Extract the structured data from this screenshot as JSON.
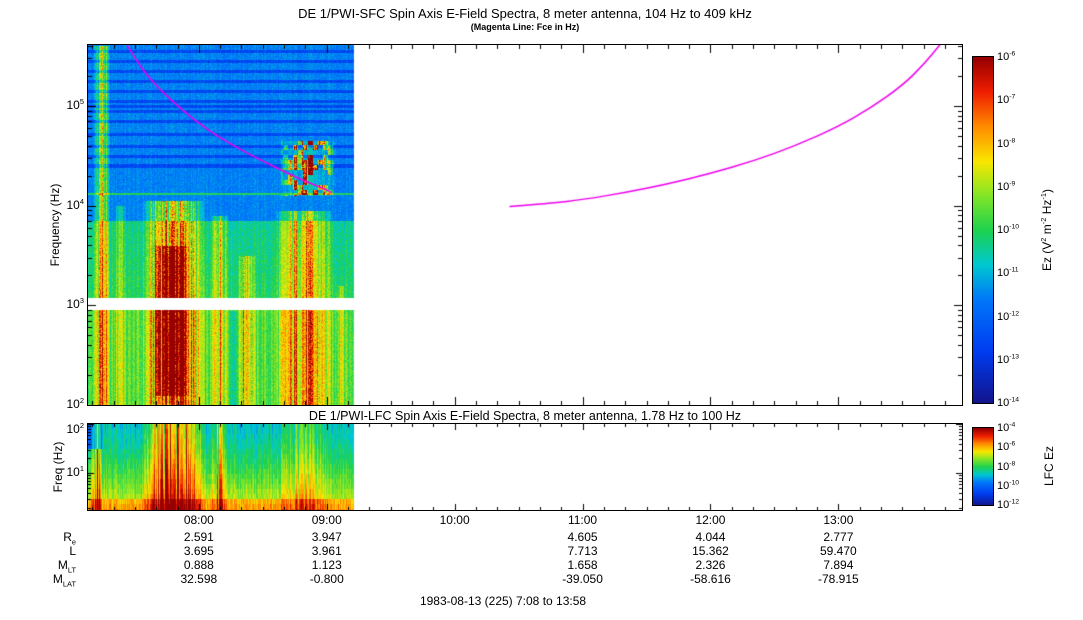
{
  "figure": {
    "footer": "1983-08-13 (225) 7:08 to 13:58",
    "time_axis": {
      "start": "07:08",
      "end": "13:58",
      "tick_labels": [
        "08:00",
        "09:00",
        "10:00",
        "11:00",
        "12:00",
        "13:00"
      ]
    }
  },
  "palette": {
    "stops": [
      [
        0.0,
        20,
        20,
        140
      ],
      [
        0.15,
        0,
        60,
        240
      ],
      [
        0.3,
        0,
        120,
        250
      ],
      [
        0.4,
        0,
        200,
        210
      ],
      [
        0.5,
        30,
        210,
        80
      ],
      [
        0.6,
        130,
        230,
        40
      ],
      [
        0.7,
        250,
        230,
        0
      ],
      [
        0.8,
        255,
        140,
        0
      ],
      [
        0.9,
        240,
        30,
        0
      ],
      [
        1.0,
        150,
        0,
        0
      ]
    ]
  },
  "chart_data": [
    {
      "type": "heatmap",
      "id": "sfc",
      "title": "DE 1/PWI-SFC  Spin Axis E-Field Spectra, 8 meter antenna, 104 Hz to 409 kHz",
      "subtitle": "(Magenta Line: Fce in Hz)",
      "ylabel": "Frequency (Hz)",
      "yscale": "log",
      "ylim_hz": [
        100,
        409000
      ],
      "ytick_labels": [
        "10^{5}",
        "10^{4}",
        "10^{3}",
        "10^{2}"
      ],
      "x_time_range": [
        "07:08",
        "13:58"
      ],
      "data_time_range": [
        "07:08",
        "09:13"
      ],
      "colorbar": {
        "label": "Ez (V^{2} m^{-2} Hz^{-1})",
        "scale": "log",
        "tick_labels": [
          "10^{-6}",
          "10^{-7}",
          "10^{-8}",
          "10^{-9}",
          "10^{-10}",
          "10^{-11}",
          "10^{-12}",
          "10^{-13}",
          "10^{-14}"
        ]
      },
      "fce_line": {
        "label": "Fce in Hz",
        "color": "#ee00ee",
        "segments": [
          {
            "time": [
              "07:26",
              "07:31",
              "07:36",
              "07:42",
              "07:48",
              "07:54",
              "08:00",
              "08:10",
              "08:20",
              "08:30",
              "08:40",
              "08:50",
              "09:00",
              "09:02"
            ],
            "hz": [
              420000,
              280000,
              200000,
              145000,
              110000,
              85000,
              67000,
              48000,
              36000,
              28000,
              22000,
              17500,
              14500,
              13500
            ]
          },
          {
            "time": [
              "10:26",
              "10:45",
              "11:00",
              "11:20",
              "11:40",
              "12:00",
              "12:20",
              "12:40",
              "13:00",
              "13:15",
              "13:30",
              "13:40",
              "13:48"
            ],
            "hz": [
              9800,
              10500,
              11500,
              13500,
              16500,
              21000,
              28000,
              40000,
              62000,
              95000,
              160000,
              260000,
              420000
            ]
          }
        ]
      },
      "spectral_features": {
        "gap_band_hz": [
          900,
          1200
        ],
        "dark_bands_loghz": [
          5.55,
          5.45,
          5.35,
          5.25,
          5.15,
          5.05,
          5.0,
          4.95,
          4.85,
          4.72,
          4.6,
          4.5,
          4.4
        ],
        "bright_line_loghz": 4.12,
        "events": [
          {
            "t0": 0.02,
            "t1": 0.08,
            "lf0": 2.0,
            "lf1": 5.61,
            "amp": 0.3
          },
          {
            "t0": 0.1,
            "t1": 0.14,
            "lf0": 2.0,
            "lf1": 4.0,
            "amp": 0.15
          },
          {
            "t0": 0.2,
            "t1": 0.44,
            "lf0": 2.0,
            "lf1": 4.05,
            "amp": 0.35
          },
          {
            "t0": 0.24,
            "t1": 0.38,
            "lf0": 2.1,
            "lf1": 3.6,
            "amp": 0.38
          },
          {
            "t0": 0.46,
            "t1": 0.53,
            "lf0": 2.0,
            "lf1": 3.9,
            "amp": 0.22
          },
          {
            "t0": 0.53,
            "t1": 0.56,
            "lf0": 2.0,
            "lf1": 2.95,
            "amp": -0.12
          },
          {
            "t0": 0.56,
            "t1": 0.63,
            "lf0": 2.0,
            "lf1": 3.5,
            "amp": 0.2
          },
          {
            "t0": 0.72,
            "t1": 0.93,
            "lf0": 4.1,
            "lf1": 4.65,
            "amp": 0.5,
            "patchy": true
          },
          {
            "t0": 0.7,
            "t1": 0.92,
            "lf0": 2.0,
            "lf1": 3.95,
            "amp": 0.26
          },
          {
            "t0": 0.93,
            "t1": 0.97,
            "lf0": 2.0,
            "lf1": 3.2,
            "amp": 0.15
          }
        ]
      }
    },
    {
      "type": "heatmap",
      "id": "lfc",
      "title": "DE 1/PWI-LFC  Spin Axis E-Field Spectra, 8 meter antenna, 1.78 Hz to 100 Hz",
      "ylabel": "Freq (Hz)",
      "yscale": "log",
      "ylim_hz": [
        1.78,
        100
      ],
      "ytick_labels": [
        "10^{2}",
        "10^{1}"
      ],
      "x_time_range": [
        "07:08",
        "13:58"
      ],
      "data_time_range": [
        "07:08",
        "09:13"
      ],
      "colorbar": {
        "label": "LFC Ez",
        "scale": "log",
        "tick_labels": [
          "10^{-4}",
          "10^{-6}",
          "10^{-8}",
          "10^{-10}",
          "10^{-12}"
        ]
      },
      "spectral_features": {
        "events": [
          {
            "t0": 0.01,
            "t1": 0.05,
            "amp": 0.3
          },
          {
            "t0": 0.2,
            "t1": 0.44,
            "amp": 0.38
          },
          {
            "t0": 0.46,
            "t1": 0.53,
            "amp": 0.2
          },
          {
            "t0": 0.7,
            "t1": 0.92,
            "amp": 0.12
          }
        ]
      }
    },
    {
      "type": "table",
      "id": "ephemeris",
      "row_labels": [
        "R_{e}",
        "L",
        "M_{LT}",
        "M_{LAT}"
      ],
      "column_times": [
        "08:00",
        "09:00",
        "11:00",
        "12:00",
        "13:00"
      ],
      "rows": [
        [
          "2.591",
          "3.947",
          "4.605",
          "4.044",
          "2.777"
        ],
        [
          "3.695",
          "3.961",
          "7.713",
          "15.362",
          "59.470"
        ],
        [
          "0.888",
          "1.123",
          "1.658",
          "2.326",
          "7.894"
        ],
        [
          "32.598",
          "-0.800",
          "-39.050",
          "-58.616",
          "-78.915"
        ]
      ]
    }
  ]
}
